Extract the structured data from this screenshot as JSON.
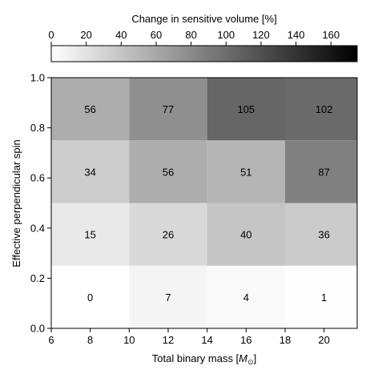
{
  "chart_data": {
    "type": "heatmap",
    "colorbar": {
      "label": "Change in sensitive volume [%]",
      "range": [
        0,
        175
      ],
      "ticks": [
        0,
        20,
        40,
        60,
        80,
        100,
        120,
        140,
        160
      ],
      "colormap": "white-to-black"
    },
    "xlabel": "Total binary mass [",
    "xlabel_unit": "M",
    "xlabel_sub": "⊙",
    "xlabel_end": "]",
    "ylabel": "Effective perpendicular spin",
    "xlim": [
      6,
      21.7
    ],
    "ylim": [
      0.0,
      1.0
    ],
    "xticks": [
      6,
      8,
      10,
      12,
      14,
      16,
      18,
      20
    ],
    "yticks": [
      "0.0",
      "0.2",
      "0.4",
      "0.6",
      "0.8",
      "1.0"
    ],
    "x_bin_edges": [
      6,
      10,
      14,
      18,
      21.7
    ],
    "x_bin_centers": [
      8,
      12,
      16,
      20
    ],
    "y_bin_edges": [
      0.0,
      0.25,
      0.5,
      0.75,
      1.0
    ],
    "y_bin_centers": [
      0.125,
      0.375,
      0.625,
      0.875
    ],
    "values": [
      [
        0,
        7,
        4,
        1
      ],
      [
        15,
        26,
        40,
        36
      ],
      [
        34,
        56,
        51,
        87
      ],
      [
        56,
        77,
        105,
        102
      ]
    ]
  }
}
